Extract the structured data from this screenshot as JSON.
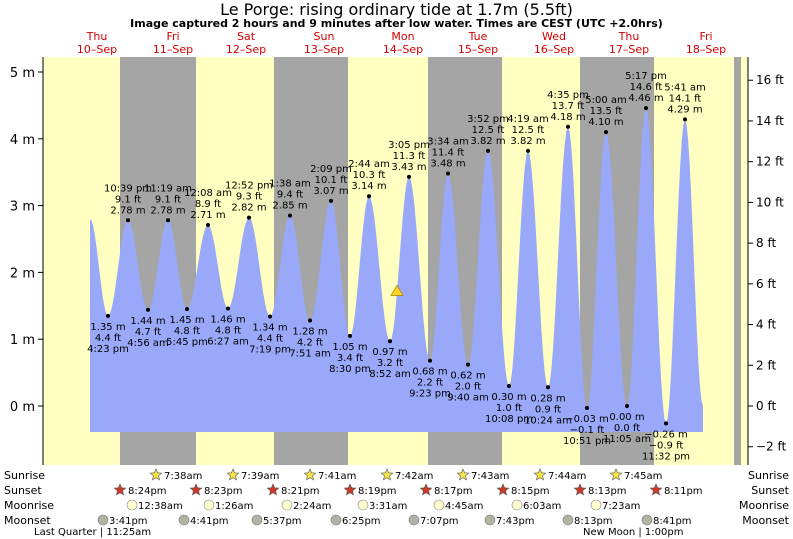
{
  "header": {
    "title": "Le Porge: rising  ordinary tide at 1.7m (5.5ft)",
    "subtitle": "Image captured 2 hours and 9 minutes after low water. Times are CEST (UTC +2.0hrs)"
  },
  "chart_data": {
    "type": "area",
    "ylabel_left": "m",
    "ylabel_right": "ft",
    "ylim_m": [
      -0.9,
      5.2
    ],
    "yticks_m": [
      "0 m",
      "1 m",
      "2 m",
      "3 m",
      "4 m",
      "5 m"
    ],
    "yticks_ft": [
      "−2 ft",
      "0 ft",
      "2 ft",
      "4 ft",
      "6 ft",
      "8 ft",
      "10 ft",
      "12 ft",
      "14 ft",
      "16 ft"
    ],
    "days": [
      {
        "dow": "Thu",
        "date": "10–Sep"
      },
      {
        "dow": "Fri",
        "date": "11–Sep"
      },
      {
        "dow": "Sat",
        "date": "12–Sep"
      },
      {
        "dow": "Sun",
        "date": "13–Sep"
      },
      {
        "dow": "Mon",
        "date": "14–Sep"
      },
      {
        "dow": "Tue",
        "date": "15–Sep"
      },
      {
        "dow": "Wed",
        "date": "16–Sep"
      },
      {
        "dow": "Thu",
        "date": "17–Sep"
      },
      {
        "dow": "Fri",
        "date": "18–Sep"
      }
    ],
    "high_tides": [
      {
        "time": "10:39 pm",
        "ft": "9.1 ft",
        "m": "2.78 m",
        "value": 2.78
      },
      {
        "time": "11:19 am",
        "ft": "9.1 ft",
        "m": "2.78 m",
        "value": 2.78
      },
      {
        "time": "12:08 am",
        "ft": "8.9 ft",
        "m": "2.71 m",
        "value": 2.71
      },
      {
        "time": "12:52 pm",
        "ft": "9.3 ft",
        "m": "2.82 m",
        "value": 2.82
      },
      {
        "time": "1:38 am",
        "ft": "9.4 ft",
        "m": "2.85 m",
        "value": 2.85
      },
      {
        "time": "2:09 pm",
        "ft": "10.1 ft",
        "m": "3.07 m",
        "value": 3.07
      },
      {
        "time": "2:44 am",
        "ft": "10.3 ft",
        "m": "3.14 m",
        "value": 3.14
      },
      {
        "time": "3:05 pm",
        "ft": "11.3 ft",
        "m": "3.43 m",
        "value": 3.43
      },
      {
        "time": "3:34 am",
        "ft": "11.4 ft",
        "m": "3.48 m",
        "value": 3.48
      },
      {
        "time": "3:52 pm",
        "ft": "12.5 ft",
        "m": "3.82 m",
        "value": 3.82
      },
      {
        "time": "4:19 am",
        "ft": "12.5 ft",
        "m": "3.82 m",
        "value": 3.82
      },
      {
        "time": "4:35 pm",
        "ft": "13.7 ft",
        "m": "4.18 m",
        "value": 4.18
      },
      {
        "time": "5:00 am",
        "ft": "13.5 ft",
        "m": "4.10 m",
        "value": 4.1
      },
      {
        "time": "5:17 pm",
        "ft": "14.6 ft",
        "m": "4.46 m",
        "value": 4.46
      },
      {
        "time": "5:41 am",
        "ft": "14.1 ft",
        "m": "4.29 m",
        "value": 4.29
      }
    ],
    "low_tides": [
      {
        "m": "1.35 m",
        "ft": "4.4 ft",
        "time": "4:23 pm",
        "value": 1.35
      },
      {
        "m": "1.44 m",
        "ft": "4.7 ft",
        "time": "4:56 am",
        "value": 1.44
      },
      {
        "m": "1.45 m",
        "ft": "4.8 ft",
        "time": "5:45 pm",
        "value": 1.45
      },
      {
        "m": "1.46 m",
        "ft": "4.8 ft",
        "time": "6:27 am",
        "value": 1.46
      },
      {
        "m": "1.34 m",
        "ft": "4.4 ft",
        "time": "7:19 pm",
        "value": 1.34
      },
      {
        "m": "1.28 m",
        "ft": "4.2 ft",
        "time": "7:51 am",
        "value": 1.28
      },
      {
        "m": "1.05 m",
        "ft": "3.4 ft",
        "time": "8:30 pm",
        "value": 1.05
      },
      {
        "m": "0.97 m",
        "ft": "3.2 ft",
        "time": "8:52 am",
        "value": 0.97
      },
      {
        "m": "0.68 m",
        "ft": "2.2 ft",
        "time": "9:23 pm",
        "value": 0.68
      },
      {
        "m": "0.62 m",
        "ft": "2.0 ft",
        "time": "9:40 am",
        "value": 0.62
      },
      {
        "m": "0.30 m",
        "ft": "1.0 ft",
        "time": "10:08 pm",
        "value": 0.3
      },
      {
        "m": "0.28 m",
        "ft": "0.9 ft",
        "time": "10:24 am",
        "value": 0.28
      },
      {
        "m": "−0.03 m",
        "ft": "−0.1 ft",
        "time": "10:51 pm",
        "value": -0.03
      },
      {
        "m": "0.00 m",
        "ft": "0.0 ft",
        "time": "11:05 am",
        "value": 0.0
      },
      {
        "m": "−0.26 m",
        "ft": "−0.9 ft",
        "time": "11:32 pm",
        "value": -0.26
      }
    ],
    "current_level_m": 1.7,
    "colors": {
      "water": "#99a8f9",
      "day": "#ffffc2",
      "night": "#a5a5a5",
      "day_label": "#d40000",
      "sun_icon": "#f2e34a",
      "sunset_icon": "#c93a2a",
      "moonrise_icon": "#ffffd0",
      "moonset_icon": "#b3b3a3",
      "marker": "#ffd21f"
    }
  },
  "almanac": {
    "row_labels": [
      "Sunrise",
      "Sunset",
      "Moonrise",
      "Moonset"
    ],
    "sunrise": [
      "7:38am",
      "7:39am",
      "7:41am",
      "7:42am",
      "7:43am",
      "7:44am",
      "7:45am"
    ],
    "sunset": [
      "8:24pm",
      "8:23pm",
      "8:21pm",
      "8:19pm",
      "8:17pm",
      "8:15pm",
      "8:13pm",
      "8:11pm"
    ],
    "moonrise": [
      "12:38am",
      "1:26am",
      "2:24am",
      "3:31am",
      "4:45am",
      "6:03am",
      "7:23am"
    ],
    "moonset": [
      "3:41pm",
      "4:41pm",
      "5:37pm",
      "6:25pm",
      "7:07pm",
      "7:43pm",
      "8:13pm",
      "8:41pm"
    ],
    "moon_phases": [
      "Last Quarter | 11:25am",
      "New Moon | 1:00pm"
    ]
  }
}
